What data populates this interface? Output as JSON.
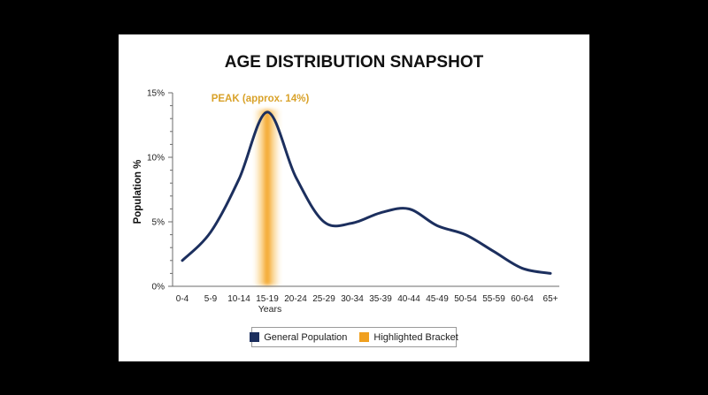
{
  "chart_data": {
    "type": "line",
    "title": "AGE DISTRIBUTION SNAPSHOT",
    "xlabel": "Years",
    "ylabel": "Population %",
    "categories": [
      "0-4",
      "5-9",
      "10-14",
      "15-19",
      "20-24",
      "25-29",
      "30-34",
      "35-39",
      "40-44",
      "45-49",
      "50-54",
      "55-59",
      "60-64",
      "65+"
    ],
    "ylim": [
      0,
      15
    ],
    "yticks": [
      0,
      5,
      10,
      15
    ],
    "ytick_labels": [
      "0%",
      "5%",
      "10%",
      "15%"
    ],
    "grid": false,
    "legend_position": "bottom",
    "series": [
      {
        "name": "General Population",
        "color": "#1c2f5e",
        "values": [
          2.0,
          4.2,
          8.3,
          13.5,
          8.5,
          5.0,
          4.9,
          5.7,
          6.0,
          4.7,
          4.0,
          2.7,
          1.4,
          1.0
        ]
      }
    ],
    "highlight": {
      "name": "Highlighted Bracket",
      "category": "15-19",
      "color": "#f0a020"
    },
    "annotation": {
      "text": "PEAK (approx. 14%)",
      "category": "15-19",
      "value": 13.5,
      "color": "#d9a22a"
    }
  }
}
